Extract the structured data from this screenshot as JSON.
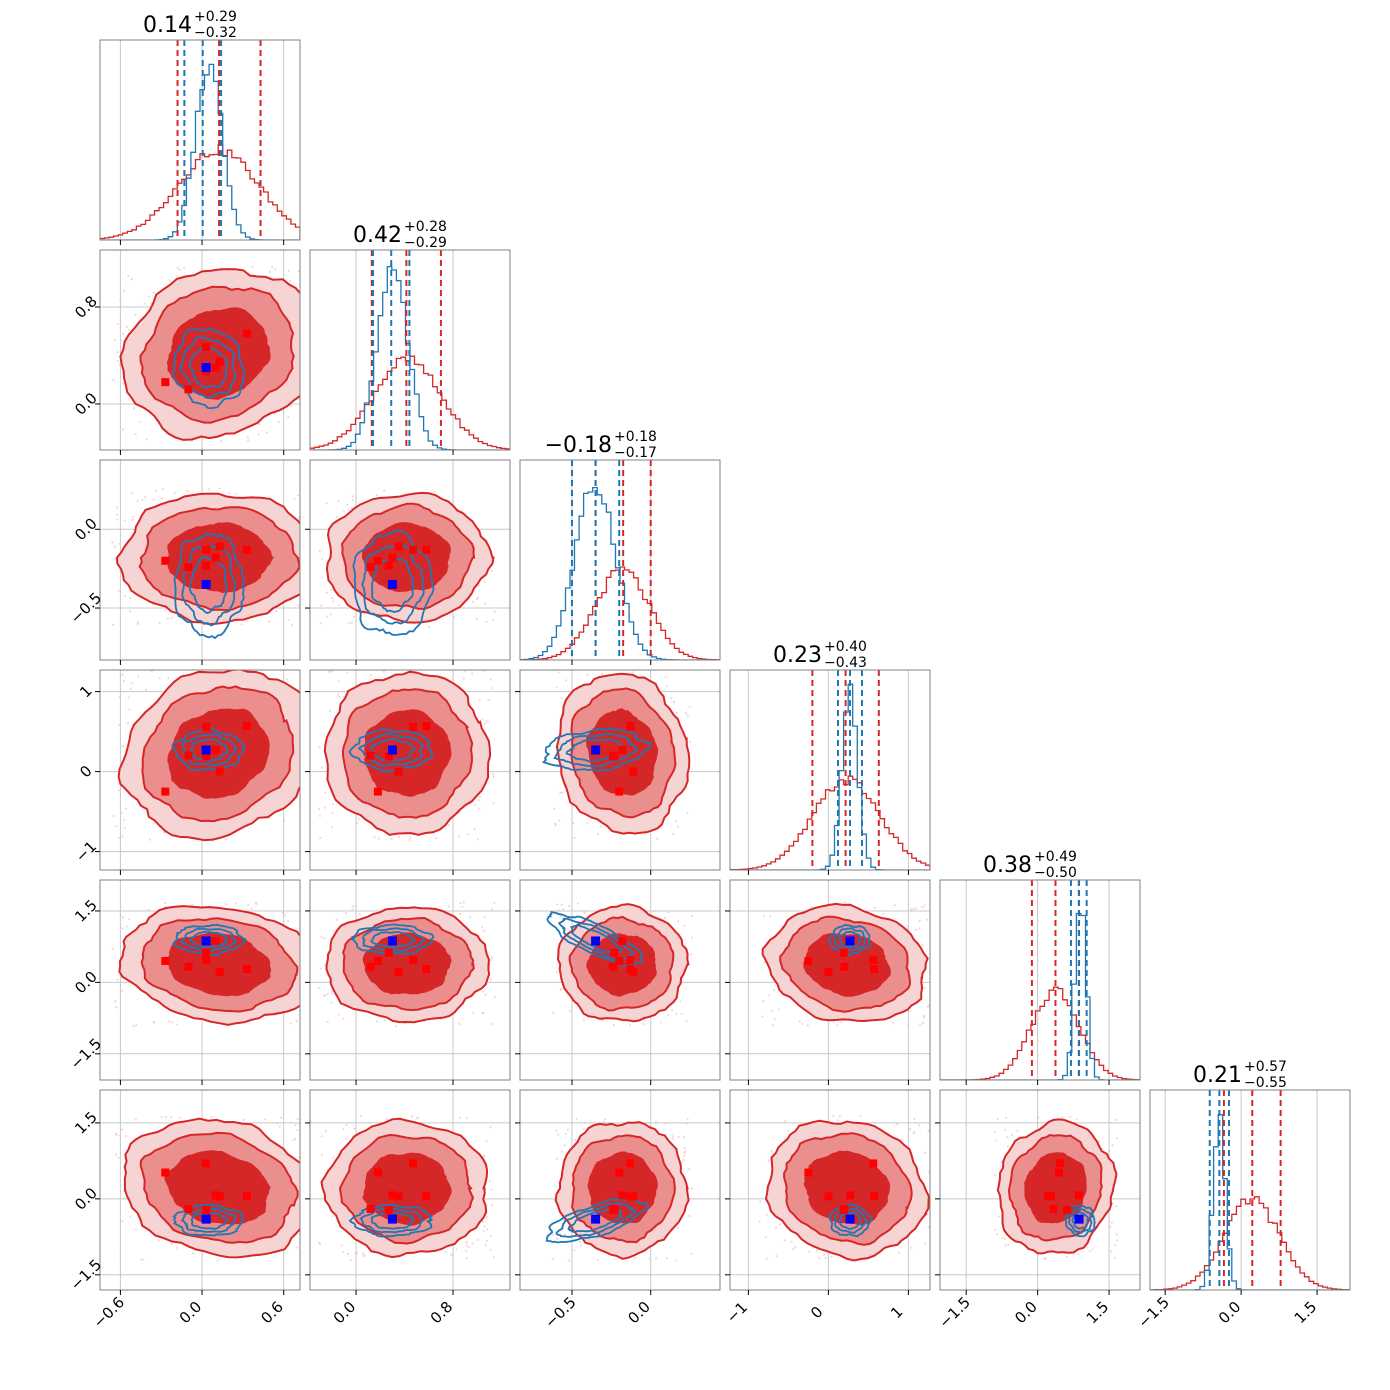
{
  "chart_data": {
    "type": "corner",
    "n_params": 6,
    "colors": {
      "posterior_a": "#d62728",
      "posterior_b": "#1f77b4",
      "truth_marker": "#0000ff",
      "sample_marker": "#ff0000",
      "grid": "#c8c8c8"
    },
    "params": [
      {
        "median": 0.14,
        "plus": "+0.29",
        "minus": "−0.32",
        "title_value": "0.14",
        "range": [
          -0.75,
          0.72
        ],
        "ticks": [
          -0.6,
          0.0,
          0.6
        ],
        "tick_labels": [
          "−0.6",
          "0.0",
          "0.6"
        ],
        "quantiles_a": [
          -0.18,
          0.43
        ],
        "quantiles_b": [
          -0.13,
          0.14
        ],
        "hist_a_mu": 0.12,
        "hist_a_sigma": 0.3,
        "hist_b_mu": 0.05,
        "hist_b_sigma": 0.1
      },
      {
        "median": 0.42,
        "plus": "+0.28",
        "minus": "−0.29",
        "title_value": "0.42",
        "range": [
          -0.38,
          1.27
        ],
        "ticks": [
          0.0,
          0.8
        ],
        "tick_labels": [
          "0.0",
          "0.8"
        ],
        "quantiles_a": [
          0.13,
          0.7
        ],
        "quantiles_b": [
          0.14,
          0.44
        ],
        "hist_a_mu": 0.42,
        "hist_a_sigma": 0.28,
        "hist_b_mu": 0.3,
        "hist_b_sigma": 0.13
      },
      {
        "median": -0.18,
        "plus": "+0.18",
        "minus": "−0.17",
        "title_value": "−0.18",
        "range": [
          -0.83,
          0.44
        ],
        "ticks": [
          -0.5,
          0.0
        ],
        "tick_labels": [
          "−0.5",
          "0.0"
        ],
        "quantiles_a": [
          -0.35,
          0.0
        ],
        "quantiles_b": [
          -0.5,
          -0.2
        ],
        "hist_a_mu": -0.18,
        "hist_a_sigma": 0.17,
        "hist_b_mu": -0.35,
        "hist_b_sigma": 0.13
      },
      {
        "median": 0.23,
        "plus": "+0.40",
        "minus": "−0.43",
        "title_value": "0.23",
        "range": [
          -1.23,
          1.27
        ],
        "ticks": [
          -1,
          0,
          1
        ],
        "tick_labels": [
          "−1",
          "0",
          "1"
        ],
        "quantiles_a": [
          -0.2,
          0.63
        ],
        "quantiles_b": [
          0.12,
          0.42
        ],
        "hist_a_mu": 0.23,
        "hist_a_sigma": 0.42,
        "hist_b_mu": 0.27,
        "hist_b_sigma": 0.1
      },
      {
        "median": 0.38,
        "plus": "+0.49",
        "minus": "−0.50",
        "title_value": "0.38",
        "range": [
          -2.05,
          2.15
        ],
        "ticks": [
          -1.5,
          0.0,
          1.5
        ],
        "tick_labels": [
          "−1.5",
          "0.0",
          "1.5"
        ],
        "quantiles_a": [
          -0.12,
          0.87
        ],
        "quantiles_b": [
          0.7,
          1.03
        ],
        "hist_a_mu": 0.38,
        "hist_a_sigma": 0.5,
        "hist_b_mu": 0.9,
        "hist_b_sigma": 0.12
      },
      {
        "median": 0.21,
        "plus": "+0.57",
        "minus": "−0.55",
        "title_value": "0.21",
        "range": [
          -1.8,
          2.15
        ],
        "ticks": [
          -1.5,
          0.0,
          1.5
        ],
        "tick_labels": [
          "−1.5",
          "0.0",
          "1.5"
        ],
        "quantiles_a": [
          -0.34,
          0.78
        ],
        "quantiles_b": [
          -0.62,
          -0.24
        ],
        "hist_a_mu": 0.21,
        "hist_a_sigma": 0.55,
        "hist_b_mu": -0.43,
        "hist_b_sigma": 0.12
      }
    ],
    "truth_point": [
      0.03,
      0.3,
      -0.35,
      0.27,
      0.87,
      -0.4
    ],
    "sample_points": [
      [
        0.03,
        0.47,
        -0.13,
        0.56,
        0.47,
        0.7
      ],
      [
        0.1,
        0.3,
        -0.18,
        0.27,
        0.87,
        0.07
      ],
      [
        0.33,
        0.58,
        -0.13,
        0.57,
        0.28,
        0.05
      ],
      [
        -0.27,
        0.18,
        -0.2,
        -0.25,
        0.45,
        0.52
      ],
      [
        0.03,
        0.27,
        -0.23,
        0.19,
        0.62,
        -0.22
      ],
      [
        0.13,
        0.35,
        -0.11,
        0.0,
        0.22,
        0.05
      ],
      [
        -0.1,
        0.12,
        -0.24,
        0.2,
        0.33,
        -0.2
      ]
    ],
    "posterior_a_sigma_scale": [
      0.3,
      0.28,
      0.17,
      0.42,
      0.5,
      0.55
    ],
    "posterior_b_sigma_scale": [
      0.1,
      0.13,
      0.13,
      0.1,
      0.12,
      0.12
    ]
  }
}
